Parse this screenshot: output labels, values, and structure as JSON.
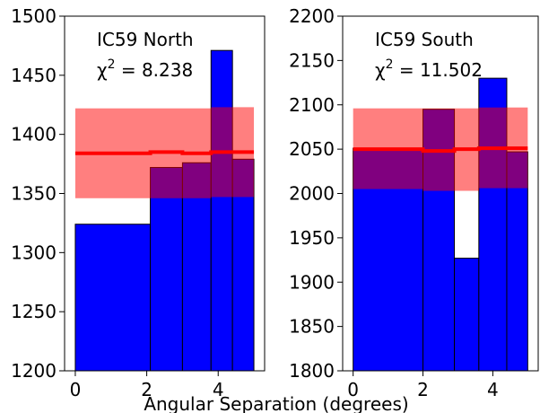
{
  "chart_data": [
    {
      "type": "bar",
      "annotation": {
        "line1": "IC59 North",
        "chi_symbol": "χ",
        "chi_sup": "2",
        "chi_value": " = 8.238"
      },
      "bins": [
        [
          0,
          2.1
        ],
        [
          2.1,
          3.0
        ],
        [
          3.0,
          3.8
        ],
        [
          3.8,
          4.4
        ],
        [
          4.4,
          5.0
        ]
      ],
      "values": [
        1324,
        1372,
        1376,
        1471,
        1379
      ],
      "fit": {
        "x": [
          0,
          2.1,
          2.1,
          3.0,
          3.0,
          3.8,
          3.8,
          5.0
        ],
        "y": [
          1384,
          1384,
          1385,
          1385,
          1384,
          1384,
          1385,
          1385
        ]
      },
      "band": [
        [
          0,
          3.8,
          1346,
          1422
        ],
        [
          3.8,
          5.0,
          1347,
          1423
        ]
      ],
      "xlim": [
        -0.3,
        5.3
      ],
      "ylim": [
        1200,
        1500
      ],
      "xticks": [
        0,
        2,
        4
      ],
      "yticks": [
        1200,
        1250,
        1300,
        1350,
        1400,
        1450,
        1500
      ],
      "colors": {
        "bar": "#0000ff",
        "band": "#ff8080",
        "overlap": "#800080",
        "fit": "#ff0000"
      }
    },
    {
      "type": "bar",
      "annotation": {
        "line1": "IC59 South",
        "chi_symbol": "χ",
        "chi_sup": "2",
        "chi_value": " = 11.502"
      },
      "bins": [
        [
          0,
          2.0
        ],
        [
          2.0,
          2.9
        ],
        [
          2.9,
          3.6
        ],
        [
          3.6,
          4.4
        ],
        [
          4.4,
          5.0
        ]
      ],
      "values": [
        2051,
        2095,
        1927,
        2130,
        2047
      ],
      "fit": {
        "x": [
          0,
          2.0,
          2.0,
          2.9,
          2.9,
          3.6,
          3.6,
          5.0
        ],
        "y": [
          2050,
          2050,
          2048,
          2048,
          2050,
          2050,
          2051,
          2051
        ]
      },
      "band": [
        [
          0,
          2.0,
          2005,
          2096
        ],
        [
          2.0,
          3.6,
          2003,
          2096
        ],
        [
          3.6,
          5.0,
          2006,
          2097
        ]
      ],
      "xlim": [
        -0.3,
        5.3
      ],
      "ylim": [
        1800,
        2200
      ],
      "xticks": [
        0,
        2,
        4
      ],
      "yticks": [
        1800,
        1850,
        1900,
        1950,
        2000,
        2050,
        2100,
        2150,
        2200
      ],
      "colors": {
        "bar": "#0000ff",
        "band": "#ff8080",
        "overlap": "#800080",
        "fit": "#ff0000"
      }
    }
  ],
  "xlabel": "Angular Separation (degrees)"
}
